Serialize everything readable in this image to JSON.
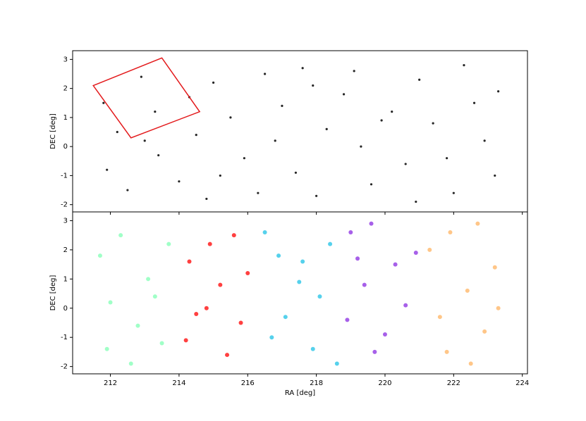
{
  "chart_data": [
    {
      "type": "scatter",
      "ylabel": "DEC [deg]",
      "xlim": [
        210.9,
        224.15
      ],
      "ylim": [
        -2.25,
        3.3
      ],
      "xticks": [
        212,
        214,
        216,
        218,
        220,
        222,
        224
      ],
      "yticks": [
        -2,
        -1,
        0,
        1,
        2,
        3
      ],
      "series": [
        {
          "color": "#000000",
          "x": [
            211.8,
            212.2,
            212.9,
            213.3,
            211.9,
            212.5,
            213.4,
            214.0,
            214.5,
            214.3,
            215.0,
            215.5,
            215.9,
            216.3,
            215.2,
            216.5,
            217.0,
            216.8,
            217.4,
            217.9,
            218.3,
            218.0,
            218.8,
            219.3,
            219.6,
            219.1,
            220.2,
            220.6,
            220.9,
            221.0,
            221.4,
            221.8,
            222.3,
            222.6,
            222.9,
            223.2,
            222.0,
            223.3,
            213.0,
            214.8,
            217.6,
            219.9
          ],
          "values": [
            1.5,
            0.5,
            2.4,
            1.2,
            -0.8,
            -1.5,
            -0.3,
            -1.2,
            0.4,
            1.7,
            2.2,
            1.0,
            -0.4,
            -1.6,
            -1.0,
            2.5,
            1.4,
            0.2,
            -0.9,
            2.1,
            0.6,
            -1.7,
            1.8,
            0.0,
            -1.3,
            2.6,
            1.2,
            -0.6,
            -1.9,
            2.3,
            0.8,
            -0.4,
            2.8,
            1.5,
            0.2,
            -1.0,
            -1.6,
            1.9,
            0.2,
            -1.8,
            2.7,
            0.9
          ]
        }
      ],
      "region": {
        "color": "#e31a1c",
        "x": [
          211.5,
          213.5,
          214.6,
          212.6
        ],
        "values": [
          2.1,
          3.05,
          1.2,
          0.3
        ]
      }
    },
    {
      "type": "scatter",
      "xlabel": "RA [deg]",
      "ylabel": "DEC [deg]",
      "xlim": [
        210.9,
        224.15
      ],
      "ylim": [
        -2.25,
        3.3
      ],
      "xticks": [
        212,
        214,
        216,
        218,
        220,
        222,
        224
      ],
      "yticks": [
        -2,
        -1,
        0,
        1,
        2,
        3
      ],
      "series": [
        {
          "color": "#80ffb4",
          "x": [
            211.7,
            212.3,
            213.1,
            212.0,
            212.8,
            213.5,
            211.9,
            212.6,
            213.7,
            213.3
          ],
          "values": [
            1.8,
            2.5,
            1.0,
            0.2,
            -0.6,
            -1.2,
            -1.4,
            -1.9,
            2.2,
            0.4
          ]
        },
        {
          "color": "#ff0000",
          "x": [
            214.3,
            214.9,
            215.6,
            215.2,
            214.5,
            215.8,
            214.2,
            215.4,
            216.0,
            214.8
          ],
          "values": [
            1.6,
            2.2,
            2.5,
            0.8,
            -0.2,
            -0.5,
            -1.1,
            -1.6,
            1.2,
            0.0
          ]
        },
        {
          "color": "#1ec2e6",
          "x": [
            216.5,
            216.9,
            217.5,
            217.1,
            216.7,
            217.9,
            218.4,
            218.1,
            218.6,
            217.6
          ],
          "values": [
            2.6,
            1.8,
            0.9,
            -0.3,
            -1.0,
            -1.4,
            2.2,
            0.4,
            -1.9,
            1.6
          ]
        },
        {
          "color": "#8a2be2",
          "x": [
            219.0,
            219.6,
            220.3,
            219.4,
            218.9,
            220.0,
            220.6,
            219.7,
            220.9,
            219.2
          ],
          "values": [
            2.6,
            2.9,
            1.5,
            0.8,
            -0.4,
            -0.9,
            0.1,
            -1.5,
            1.9,
            1.7
          ]
        },
        {
          "color": "#ffb360",
          "x": [
            221.3,
            221.9,
            222.7,
            223.2,
            222.4,
            221.6,
            222.9,
            221.8,
            222.5,
            223.3
          ],
          "values": [
            2.0,
            2.6,
            2.9,
            1.4,
            0.6,
            -0.3,
            -0.8,
            -1.5,
            -1.9,
            0.0
          ]
        }
      ]
    }
  ]
}
